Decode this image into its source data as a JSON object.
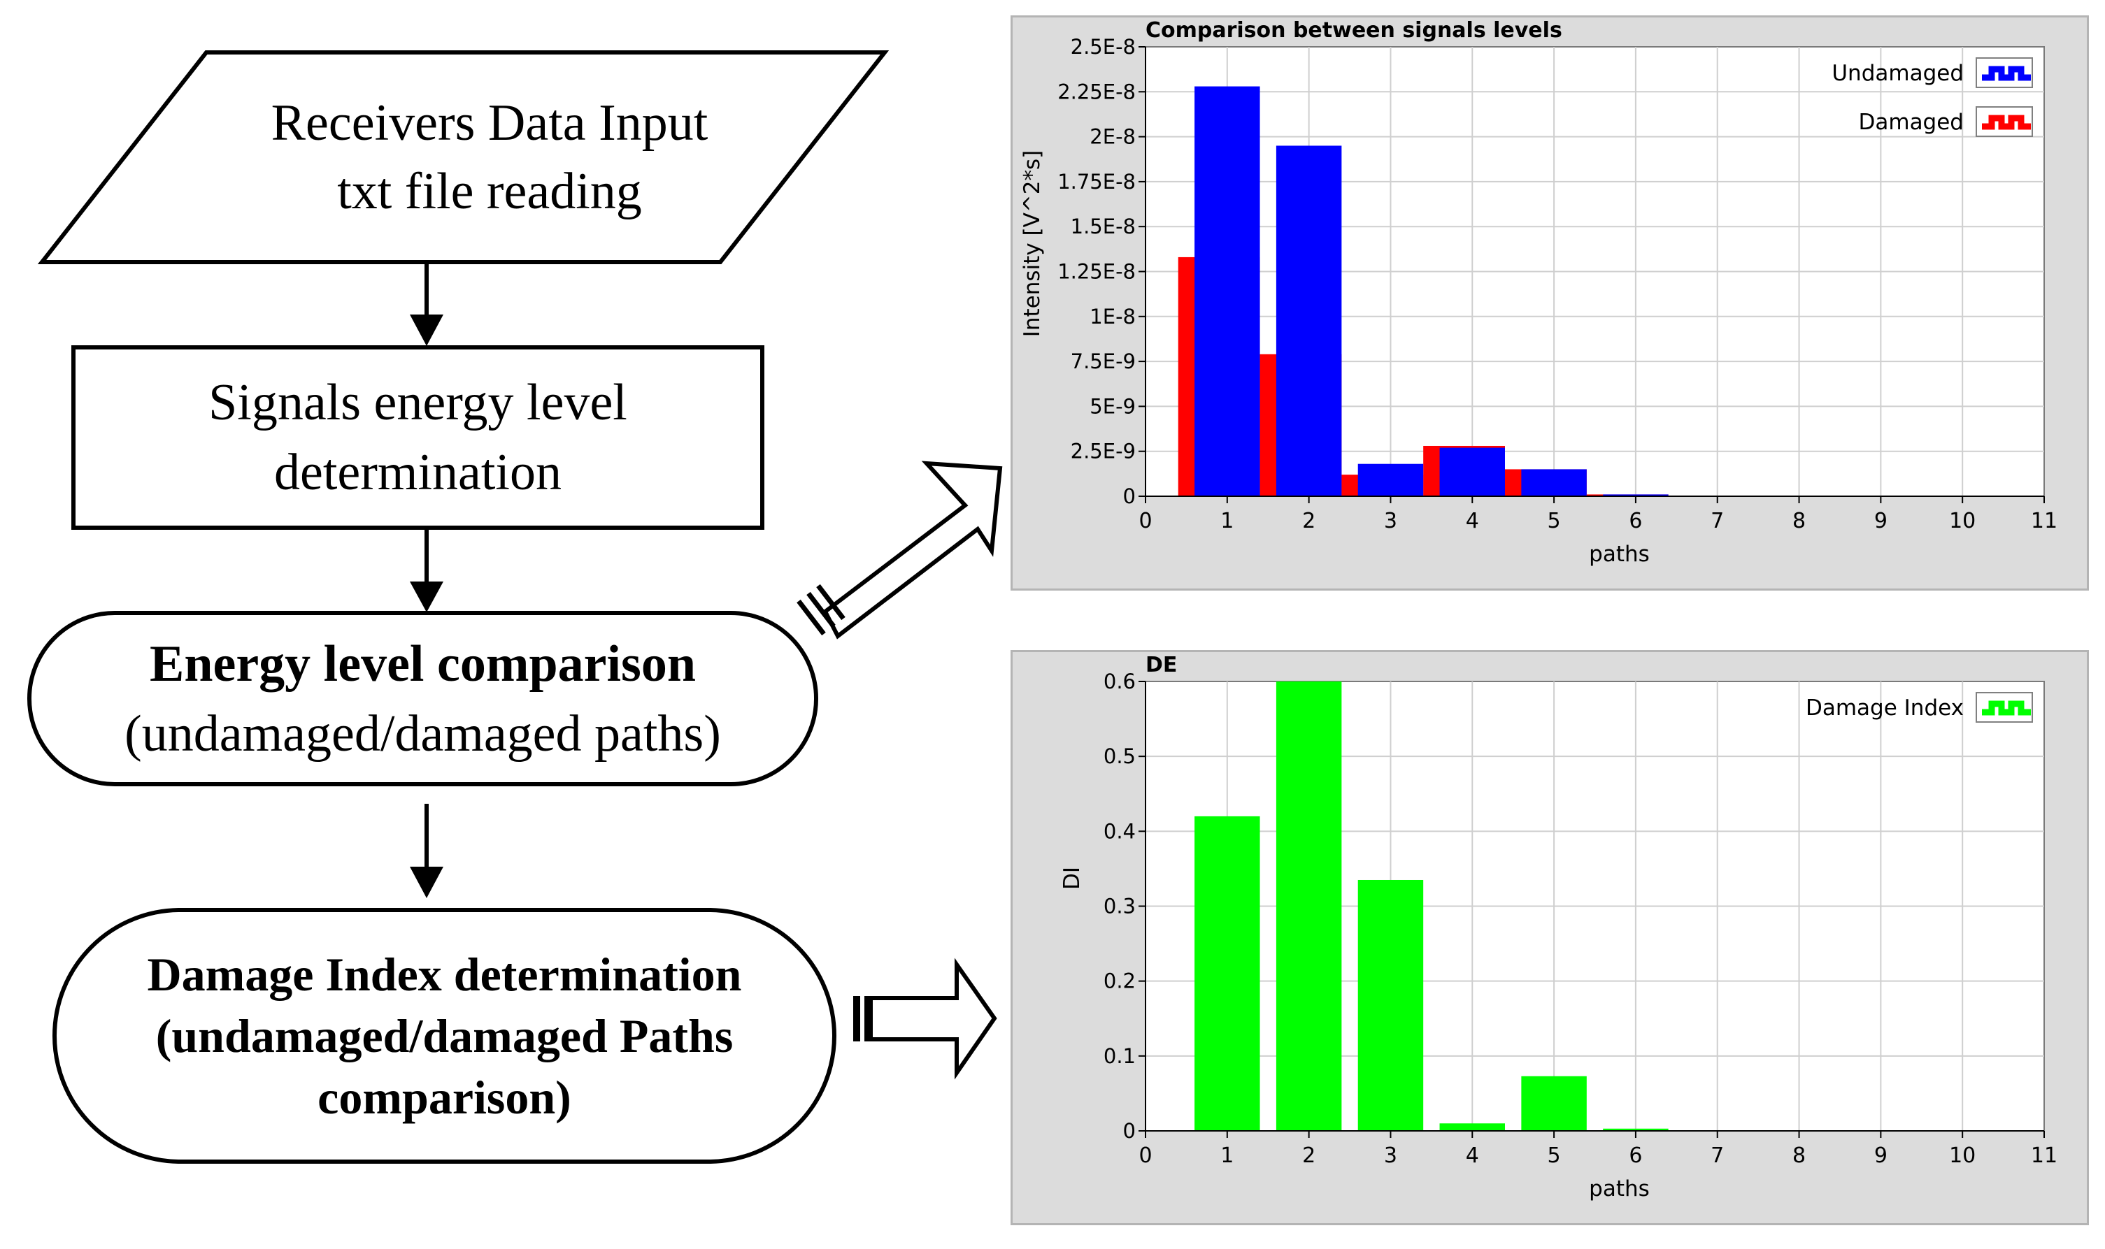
{
  "flowchart": {
    "input": {
      "line1": "Receivers Data Input",
      "line2": "txt file reading"
    },
    "energy_det": {
      "line1": "Signals energy level",
      "line2": "determination"
    },
    "comparison": {
      "line1": "Energy level comparison",
      "line2": "(undamaged/damaged paths)"
    },
    "damage_index": {
      "line1": "Damage Index determination",
      "line2": "(undamaged/damaged Paths",
      "line3": "comparison)"
    }
  },
  "chart_data": [
    {
      "type": "bar",
      "title": "Comparison between signals levels",
      "xlabel": "paths",
      "ylabel": "Intensity [V^2*s]",
      "xlim": [
        0,
        11
      ],
      "ylim": [
        0,
        2.5e-08
      ],
      "x_ticks": [
        "0",
        "1",
        "2",
        "3",
        "4",
        "5",
        "6",
        "7",
        "8",
        "9",
        "10",
        "11"
      ],
      "y_ticks": [
        "0",
        "2.5E-9",
        "5E-9",
        "7.5E-9",
        "1E-8",
        "1.25E-8",
        "1.5E-8",
        "1.75E-8",
        "2E-8",
        "2.25E-8",
        "2.5E-8"
      ],
      "grid": true,
      "legend_position": "top-right",
      "categories": [
        1,
        2,
        3,
        4,
        5,
        6
      ],
      "series": [
        {
          "name": "Undamaged",
          "color": "#0000ff",
          "values": [
            2.28e-08,
            1.95e-08,
            1.8e-09,
            2.7e-09,
            1.5e-09,
            1e-10
          ]
        },
        {
          "name": "Damaged",
          "color": "#ff0000",
          "values": [
            1.33e-08,
            7.9e-09,
            1.2e-09,
            2.8e-09,
            1.5e-09,
            1e-10
          ]
        }
      ]
    },
    {
      "type": "bar",
      "title": "DE",
      "xlabel": "paths",
      "ylabel": "DI",
      "xlim": [
        0,
        11
      ],
      "ylim": [
        0,
        0.6
      ],
      "x_ticks": [
        "0",
        "1",
        "2",
        "3",
        "4",
        "5",
        "6",
        "7",
        "8",
        "9",
        "10",
        "11"
      ],
      "y_ticks": [
        "0",
        "0.1",
        "0.2",
        "0.3",
        "0.4",
        "0.5",
        "0.6"
      ],
      "grid": true,
      "legend_position": "top-right",
      "categories": [
        1,
        2,
        3,
        4,
        5,
        6
      ],
      "series": [
        {
          "name": "Damage Index",
          "color": "#00ff00",
          "values": [
            0.42,
            0.6,
            0.335,
            0.01,
            0.073,
            0.003
          ]
        }
      ]
    }
  ]
}
